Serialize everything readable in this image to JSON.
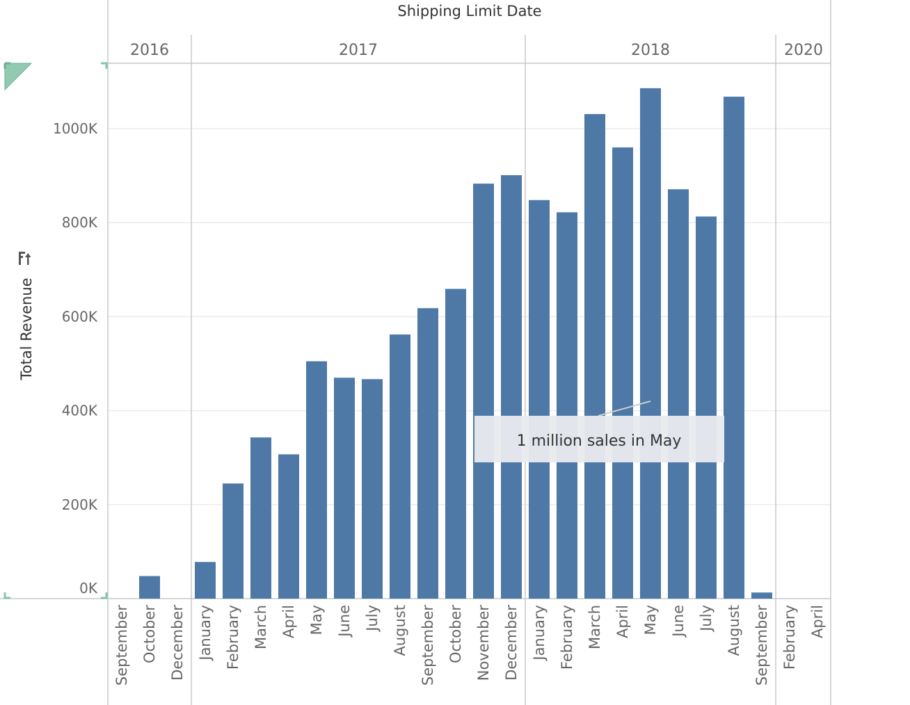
{
  "colors": {
    "bar": "#4e79a7",
    "grid": "#ececec",
    "divider": "#c8c8c8",
    "annotation_bg": "#e8eaee",
    "corner_accent": "#86c3a8"
  },
  "icons": {
    "sort": "sort-icon"
  },
  "chart_data": {
    "type": "bar",
    "title": "Shipping Limit Date",
    "ylabel": "Total Revenue",
    "xlabel": "",
    "ylim": [
      0,
      1120000
    ],
    "yticks": [
      0,
      200000,
      400000,
      600000,
      800000,
      1000000
    ],
    "ytick_labels": [
      "0K",
      "200K",
      "400K",
      "600K",
      "800K",
      "1000K"
    ],
    "grid": true,
    "years": [
      {
        "label": "2016",
        "months": [
          "September",
          "October",
          "December"
        ]
      },
      {
        "label": "2017",
        "months": [
          "January",
          "February",
          "March",
          "April",
          "May",
          "June",
          "July",
          "August",
          "September",
          "October",
          "November",
          "December"
        ]
      },
      {
        "label": "2018",
        "months": [
          "January",
          "February",
          "March",
          "April",
          "May",
          "June",
          "July",
          "August",
          "September"
        ]
      },
      {
        "label": "2020",
        "months": [
          "February",
          "April"
        ]
      }
    ],
    "values": [
      0,
      48000,
      0,
      78000,
      245000,
      343000,
      307000,
      505000,
      470000,
      467000,
      562000,
      618000,
      659000,
      883000,
      901000,
      848000,
      822000,
      1031000,
      960000,
      1086000,
      871000,
      813000,
      1068000,
      13000,
      0,
      0
    ],
    "annotation": {
      "text": "1 million sales in May",
      "target": "2018-May"
    }
  }
}
